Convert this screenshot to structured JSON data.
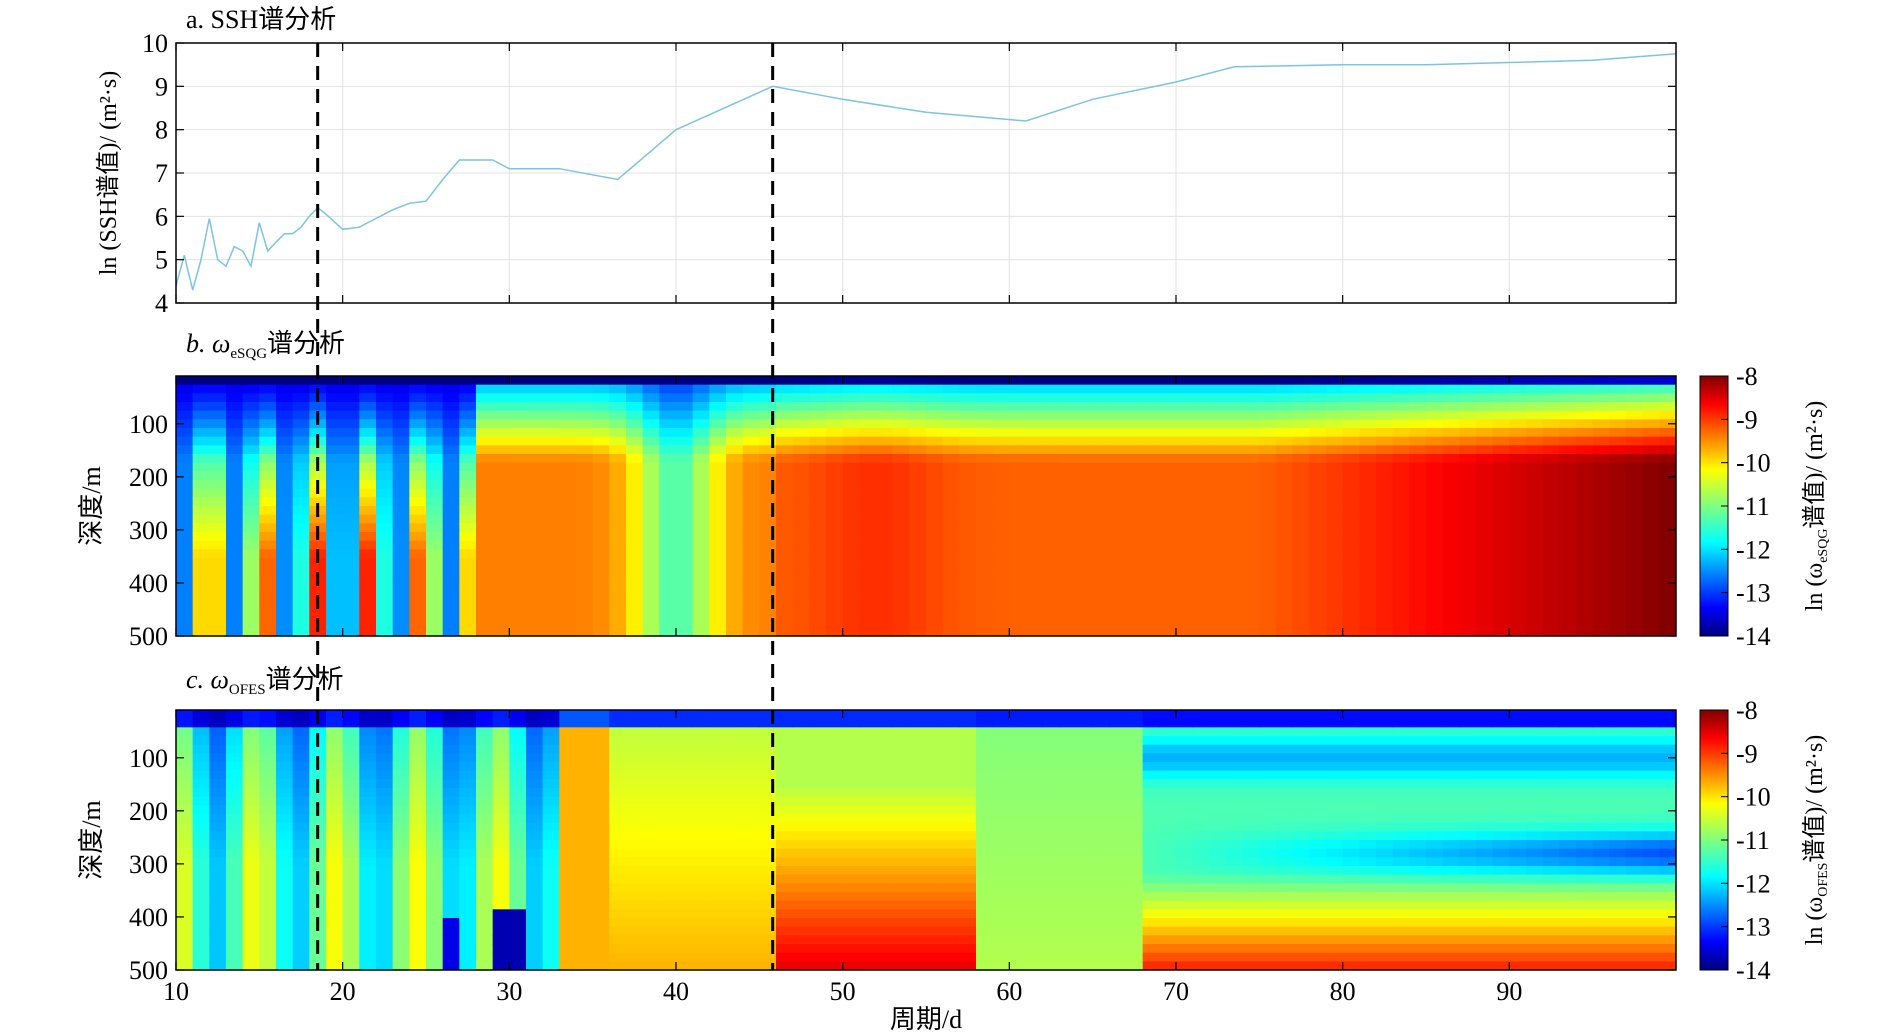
{
  "figure": {
    "xlabel": "周期/d",
    "x_ticks": [
      "10",
      "20",
      "30",
      "40",
      "50",
      "60",
      "70",
      "80",
      "90"
    ],
    "dashed_lines_x": [
      18.5,
      45.8
    ]
  },
  "chart_data": [
    {
      "type": "line",
      "panel": "a",
      "title": "a. SSH谱分析",
      "ylabel": "ln (SSH谱值)/ (m²·s)",
      "xlim": [
        10,
        100
      ],
      "ylim": [
        4,
        10
      ],
      "y_ticks": [
        "4",
        "5",
        "6",
        "7",
        "8",
        "9",
        "10"
      ],
      "grid": true,
      "line_color": "#7cc4e0",
      "series": [
        {
          "x": [
            10,
            10.5,
            11,
            11.5,
            12,
            12.5,
            13,
            13.5,
            14,
            14.5,
            15,
            15.5,
            16,
            16.5,
            17,
            17.5,
            18,
            18.5,
            19,
            20,
            21,
            22,
            23,
            24,
            25,
            26,
            27,
            28,
            29,
            30,
            33,
            36.5,
            40,
            45.8,
            50,
            55,
            61,
            65,
            70,
            73.5,
            80,
            85,
            90,
            95,
            100
          ],
          "values": [
            4.4,
            5.1,
            4.3,
            5.0,
            5.95,
            5.0,
            4.85,
            5.3,
            5.2,
            4.85,
            5.85,
            5.2,
            5.4,
            5.6,
            5.6,
            5.75,
            6.0,
            6.2,
            6.05,
            5.7,
            5.75,
            5.95,
            6.15,
            6.3,
            6.35,
            6.85,
            7.3,
            7.3,
            7.3,
            7.1,
            7.1,
            6.85,
            8.0,
            9.0,
            8.7,
            8.4,
            8.2,
            8.7,
            9.1,
            9.45,
            9.5,
            9.5,
            9.55,
            9.6,
            9.75
          ]
        }
      ]
    },
    {
      "type": "heatmap",
      "panel": "b",
      "title_prefix": "b. ω",
      "title_sub": "eSQG",
      "title_suffix": "谱分析",
      "ylabel": "深度/m",
      "y_ticks": [
        "100",
        "200",
        "300",
        "400",
        "500"
      ],
      "ylim": [
        500,
        10
      ],
      "colorbar_label": "ln (ω",
      "colorbar_sub": "eSQG",
      "colorbar_suffix": "谱值)/ (m²·s)",
      "clim": [
        -14,
        -8
      ],
      "colorbar_ticks": [
        "-8",
        "-9",
        "-10",
        "-11",
        "-12",
        "-13",
        "-14"
      ]
    },
    {
      "type": "heatmap",
      "panel": "c",
      "title_prefix": "c. ω",
      "title_sub": "OFES",
      "title_suffix": "谱分析",
      "ylabel": "深度/m",
      "y_ticks": [
        "100",
        "200",
        "300",
        "400",
        "500"
      ],
      "ylim": [
        500,
        10
      ],
      "colorbar_label": "ln (ω",
      "colorbar_sub": "OFES",
      "colorbar_suffix": "谱值)/ (m²·s)",
      "clim": [
        -14,
        -8
      ],
      "colorbar_ticks": [
        "-8",
        "-9",
        "-10",
        "-11",
        "-12",
        "-13",
        "-14"
      ]
    }
  ]
}
